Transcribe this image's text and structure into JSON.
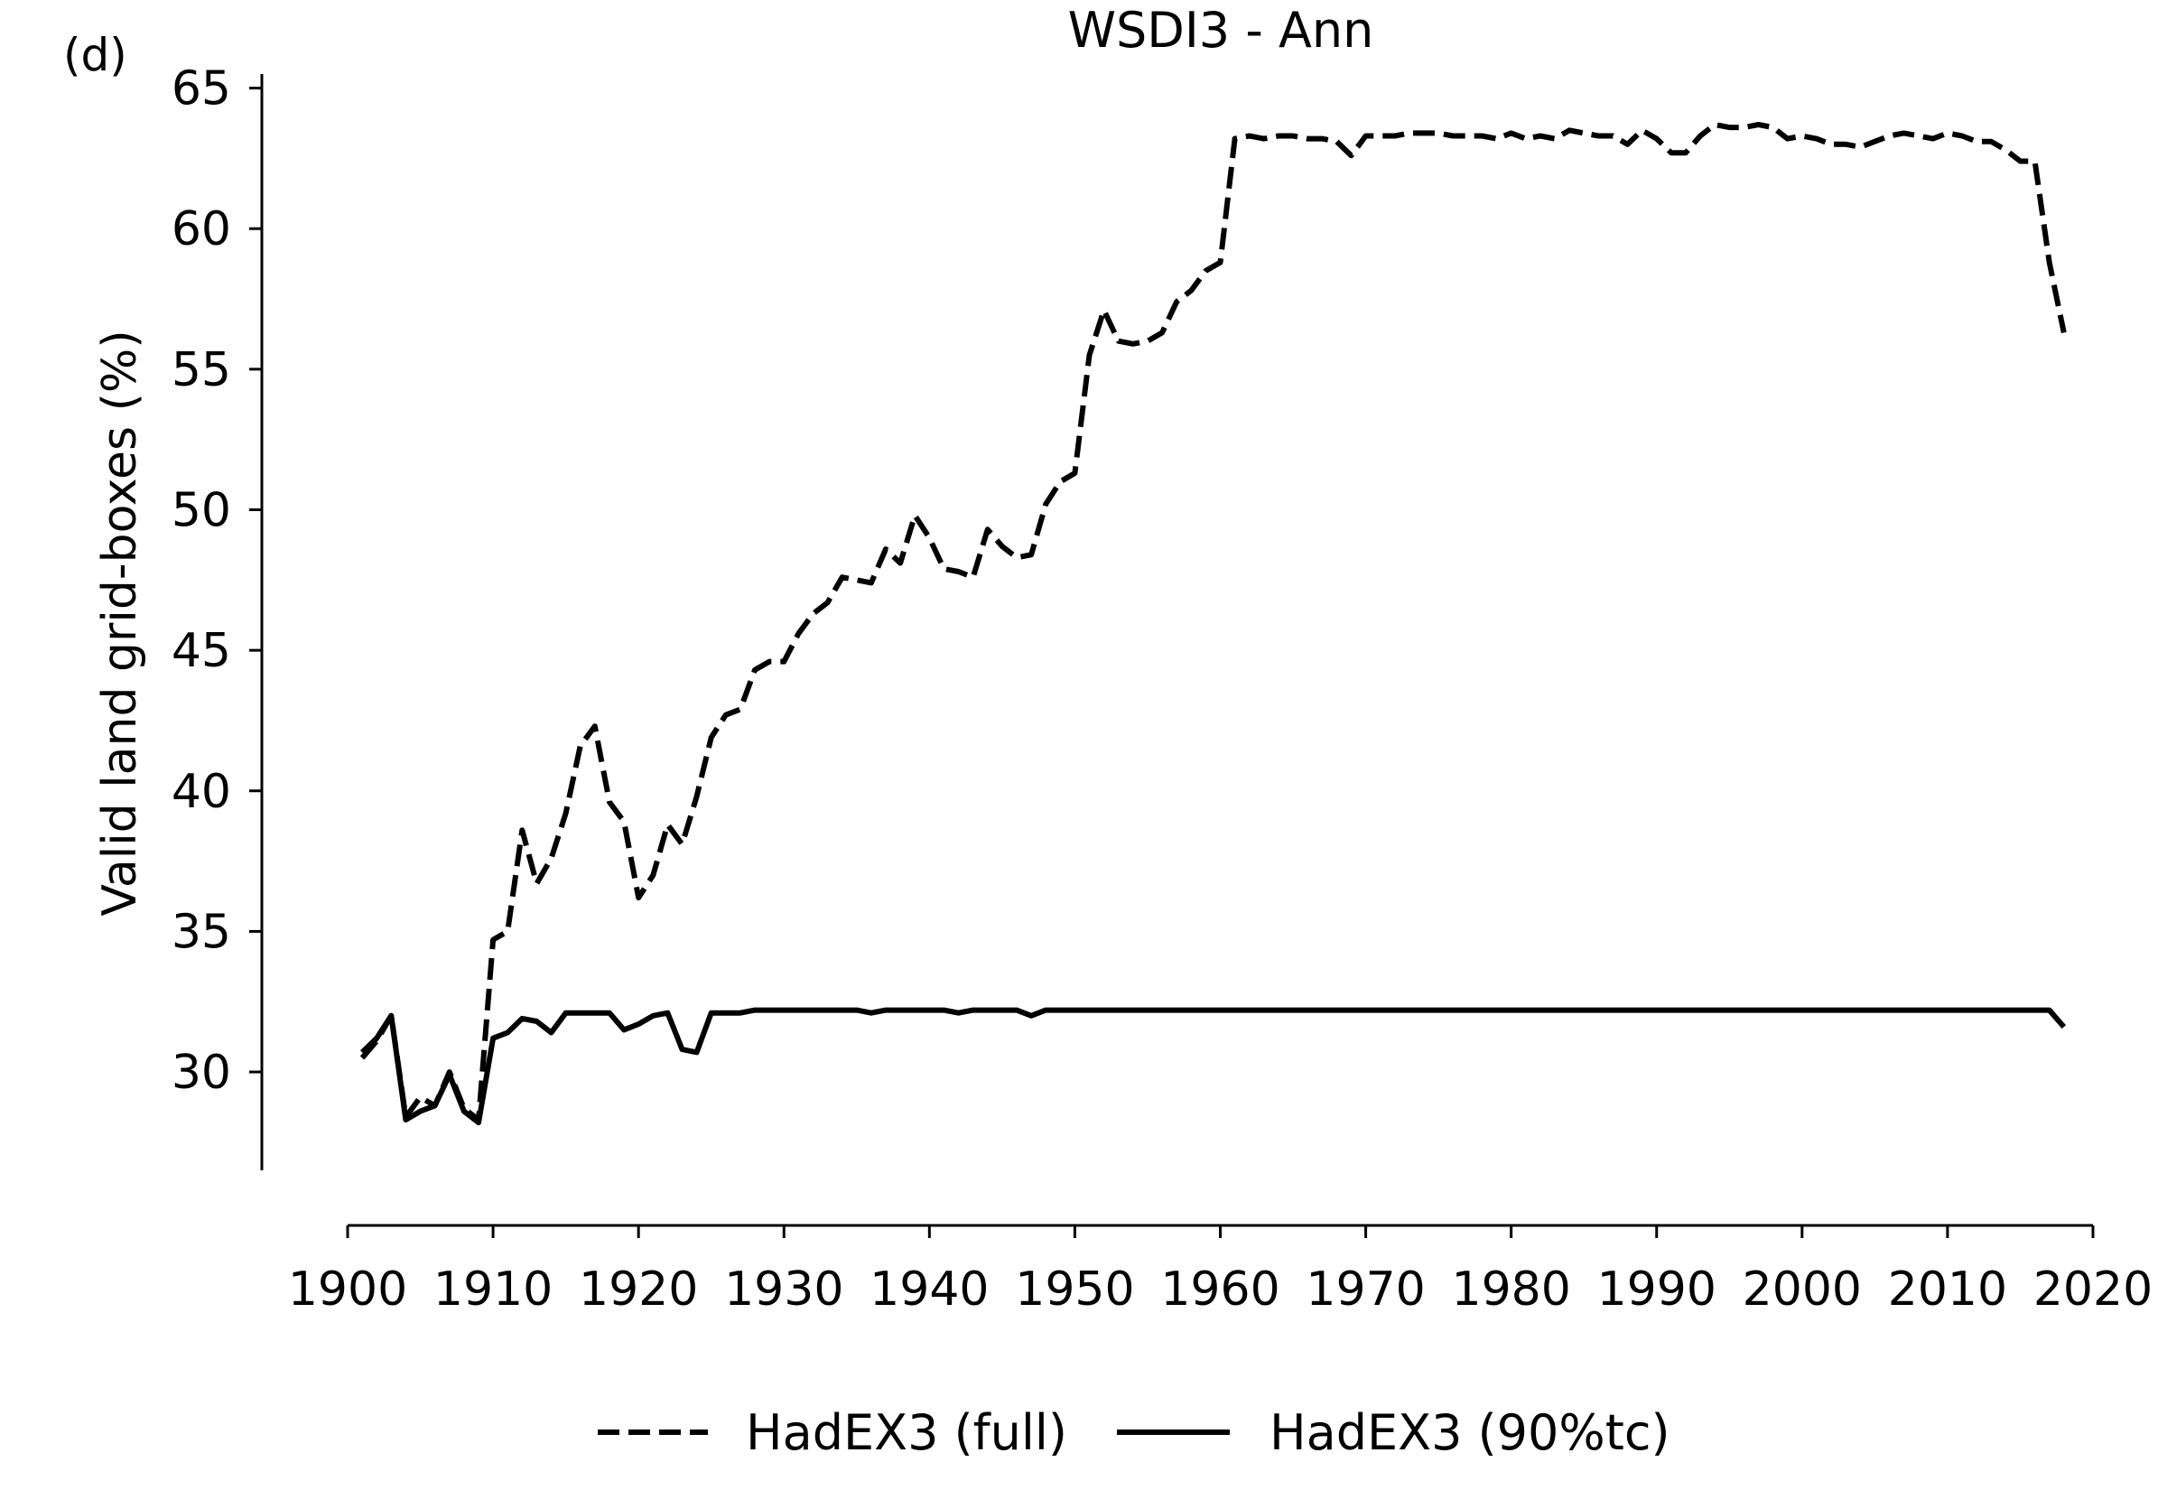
{
  "panel_label": "(d)",
  "chart_data": {
    "type": "line",
    "title": "WSDI3 - Ann",
    "xlabel": "",
    "ylabel": "Valid land grid-boxes (%)",
    "xlim": [
      1900,
      2020
    ],
    "ylim": [
      26.5,
      65.5
    ],
    "x_ticks": [
      1900,
      1910,
      1920,
      1930,
      1940,
      1950,
      1960,
      1970,
      1980,
      1990,
      2000,
      2010,
      2020
    ],
    "y_ticks": [
      30,
      35,
      40,
      45,
      50,
      55,
      60,
      65
    ],
    "grid": false,
    "legend_position": "bottom-center",
    "series": [
      {
        "name": "HadEX3 (full)",
        "style": "dashed",
        "color": "#000000",
        "x": [
          1901,
          1902,
          1903,
          1904,
          1905,
          1906,
          1907,
          1908,
          1909,
          1910,
          1911,
          1912,
          1913,
          1914,
          1915,
          1916,
          1917,
          1918,
          1919,
          1920,
          1921,
          1922,
          1923,
          1924,
          1925,
          1926,
          1927,
          1928,
          1929,
          1930,
          1931,
          1932,
          1933,
          1934,
          1935,
          1936,
          1937,
          1938,
          1939,
          1940,
          1941,
          1942,
          1943,
          1944,
          1945,
          1946,
          1947,
          1948,
          1949,
          1950,
          1951,
          1952,
          1953,
          1954,
          1955,
          1956,
          1957,
          1958,
          1959,
          1960,
          1961,
          1962,
          1963,
          1964,
          1965,
          1966,
          1967,
          1968,
          1969,
          1970,
          1971,
          1972,
          1973,
          1974,
          1975,
          1976,
          1977,
          1978,
          1979,
          1980,
          1981,
          1982,
          1983,
          1984,
          1985,
          1986,
          1987,
          1988,
          1989,
          1990,
          1991,
          1992,
          1993,
          1994,
          1995,
          1996,
          1997,
          1998,
          1999,
          2000,
          2001,
          2002,
          2003,
          2004,
          2005,
          2006,
          2007,
          2008,
          2009,
          2010,
          2011,
          2012,
          2013,
          2014,
          2015,
          2016,
          2017,
          2018
        ],
        "values": [
          30.5,
          31.1,
          32.0,
          28.4,
          29.1,
          28.8,
          30.0,
          28.7,
          28.3,
          34.7,
          35.0,
          38.6,
          36.7,
          37.6,
          39.2,
          41.6,
          42.3,
          39.6,
          38.9,
          36.2,
          37.0,
          38.8,
          38.1,
          39.8,
          41.9,
          42.7,
          42.9,
          44.3,
          44.6,
          44.6,
          45.6,
          46.3,
          46.7,
          47.6,
          47.5,
          47.4,
          48.6,
          48.1,
          49.8,
          49.0,
          47.9,
          47.8,
          47.6,
          49.3,
          48.7,
          48.3,
          48.4,
          50.2,
          51.0,
          51.3,
          55.5,
          57.1,
          56.0,
          55.9,
          56.0,
          56.3,
          57.4,
          57.8,
          58.5,
          58.8,
          63.2,
          63.3,
          63.2,
          63.3,
          63.3,
          63.2,
          63.2,
          63.1,
          62.6,
          63.3,
          63.3,
          63.3,
          63.4,
          63.4,
          63.4,
          63.3,
          63.3,
          63.3,
          63.2,
          63.4,
          63.2,
          63.3,
          63.2,
          63.5,
          63.4,
          63.3,
          63.3,
          63.0,
          63.5,
          63.2,
          62.7,
          62.7,
          63.3,
          63.7,
          63.6,
          63.6,
          63.7,
          63.6,
          63.2,
          63.3,
          63.2,
          63.0,
          63.0,
          62.9,
          63.1,
          63.3,
          63.4,
          63.3,
          63.2,
          63.4,
          63.3,
          63.1,
          63.1,
          62.8,
          62.4,
          62.4,
          58.8,
          56.3
        ]
      },
      {
        "name": "HadEX3 (90%tc)",
        "style": "solid",
        "color": "#000000",
        "x": [
          1901,
          1902,
          1903,
          1904,
          1905,
          1906,
          1907,
          1908,
          1909,
          1910,
          1911,
          1912,
          1913,
          1914,
          1915,
          1916,
          1917,
          1918,
          1919,
          1920,
          1921,
          1922,
          1923,
          1924,
          1925,
          1926,
          1927,
          1928,
          1929,
          1930,
          1931,
          1932,
          1933,
          1934,
          1935,
          1936,
          1937,
          1938,
          1939,
          1940,
          1941,
          1942,
          1943,
          1944,
          1945,
          1946,
          1947,
          1948,
          1949,
          1950,
          1951,
          1952,
          1953,
          1954,
          1955,
          1956,
          1957,
          1958,
          1959,
          1960,
          1961,
          1962,
          1963,
          1964,
          1965,
          1966,
          1967,
          1968,
          1969,
          1970,
          1971,
          1972,
          1973,
          1974,
          1975,
          1976,
          1977,
          1978,
          1979,
          1980,
          1981,
          1982,
          1983,
          1984,
          1985,
          1986,
          1987,
          1988,
          1989,
          1990,
          1991,
          1992,
          1993,
          1994,
          1995,
          1996,
          1997,
          1998,
          1999,
          2000,
          2001,
          2002,
          2003,
          2004,
          2005,
          2006,
          2007,
          2008,
          2009,
          2010,
          2011,
          2012,
          2013,
          2014,
          2015,
          2016,
          2017,
          2018
        ],
        "values": [
          30.7,
          31.2,
          32.0,
          28.3,
          28.6,
          28.8,
          29.9,
          28.6,
          28.2,
          31.2,
          31.4,
          31.9,
          31.8,
          31.4,
          32.1,
          32.1,
          32.1,
          32.1,
          31.5,
          31.7,
          32.0,
          32.1,
          30.8,
          30.7,
          32.1,
          32.1,
          32.1,
          32.2,
          32.2,
          32.2,
          32.2,
          32.2,
          32.2,
          32.2,
          32.2,
          32.1,
          32.2,
          32.2,
          32.2,
          32.2,
          32.2,
          32.1,
          32.2,
          32.2,
          32.2,
          32.2,
          32.0,
          32.2,
          32.2,
          32.2,
          32.2,
          32.2,
          32.2,
          32.2,
          32.2,
          32.2,
          32.2,
          32.2,
          32.2,
          32.2,
          32.2,
          32.2,
          32.2,
          32.2,
          32.2,
          32.2,
          32.2,
          32.2,
          32.2,
          32.2,
          32.2,
          32.2,
          32.2,
          32.2,
          32.2,
          32.2,
          32.2,
          32.2,
          32.2,
          32.2,
          32.2,
          32.2,
          32.2,
          32.2,
          32.2,
          32.2,
          32.2,
          32.2,
          32.2,
          32.2,
          32.2,
          32.2,
          32.2,
          32.2,
          32.2,
          32.2,
          32.2,
          32.2,
          32.2,
          32.2,
          32.2,
          32.2,
          32.2,
          32.2,
          32.2,
          32.2,
          32.2,
          32.2,
          32.2,
          32.2,
          32.2,
          32.2,
          32.2,
          32.2,
          32.2,
          32.2,
          32.2,
          31.6
        ]
      }
    ]
  }
}
